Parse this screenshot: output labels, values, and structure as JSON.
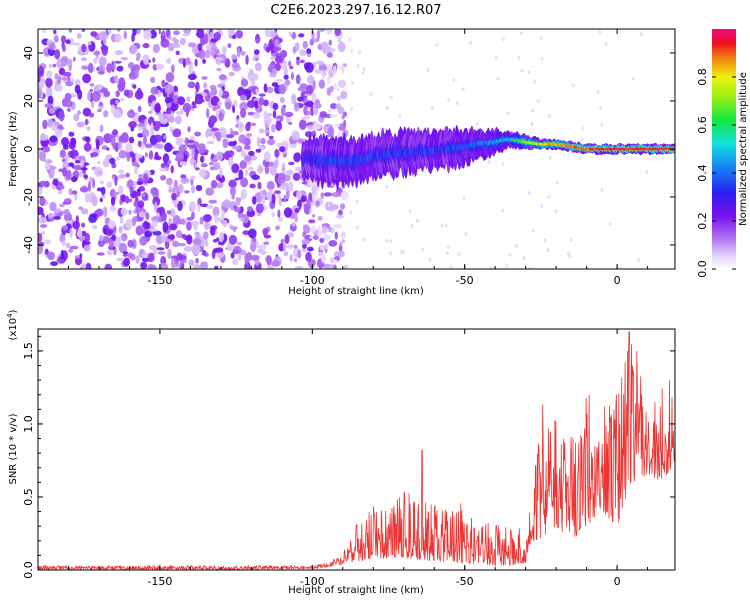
{
  "title": "C2E6.2023.297.16.12.R07",
  "chart_data": [
    {
      "type": "heatmap",
      "name": "spectrogram",
      "xlabel": "Height of straight line (km)",
      "ylabel": "Frequency (Hz)",
      "xlim": [
        -190,
        19
      ],
      "ylim": [
        -50,
        50
      ],
      "xticks": [
        -150,
        -100,
        -50,
        0
      ],
      "xtick_labels": [
        "-150",
        "-100",
        "-50",
        "0"
      ],
      "yticks": [
        -40,
        -20,
        0,
        20,
        40
      ],
      "ytick_labels": [
        "-40",
        "-20",
        "0",
        "20",
        "40"
      ],
      "noise_region": {
        "x_range": [
          -190,
          -95
        ],
        "note": "broadband scattered amplitude 0.05-0.3"
      },
      "signal_track": {
        "x": [
          -103,
          -95,
          -85,
          -75,
          -65,
          -55,
          -45,
          -40,
          -35,
          -30,
          -25,
          -20,
          -15,
          -10,
          -5,
          0,
          5,
          10,
          15,
          19
        ],
        "center_freq_hz": [
          -4,
          -5,
          -5,
          -2,
          -1,
          0,
          2,
          3,
          4,
          3,
          2,
          2,
          1,
          0,
          0,
          0,
          0,
          0,
          0,
          0
        ],
        "half_width_hz": [
          8,
          10,
          9,
          9,
          8,
          8,
          6,
          5,
          3,
          3,
          2,
          2,
          2,
          2,
          2,
          2,
          2,
          2,
          2,
          2
        ],
        "peak_amplitude": [
          0.3,
          0.35,
          0.35,
          0.35,
          0.35,
          0.35,
          0.4,
          0.45,
          0.5,
          0.7,
          0.8,
          0.85,
          0.9,
          0.9,
          0.95,
          0.95,
          0.95,
          0.95,
          0.95,
          0.95
        ]
      },
      "colorbar": {
        "label": "Normalized spectral amplitude",
        "range": [
          0,
          1
        ],
        "ticks": [
          0.0,
          0.2,
          0.4,
          0.6,
          0.8
        ],
        "tick_labels": [
          "0.0",
          "0.2",
          "0.4",
          "0.6",
          "0.8"
        ]
      }
    },
    {
      "type": "line",
      "name": "snr",
      "xlabel": "Height of straight line (km)",
      "ylabel": "SNR (10 * v/v)",
      "y_scale_label": "(x10",
      "y_scale_exp": "4",
      "y_scale_close": ")",
      "xlim": [
        -190,
        19
      ],
      "ylim": [
        0,
        1.65
      ],
      "xticks": [
        -150,
        -100,
        -50,
        0
      ],
      "xtick_labels": [
        "-150",
        "-100",
        "-50",
        "0"
      ],
      "yticks": [
        0.0,
        0.5,
        1.0,
        1.5
      ],
      "ytick_labels": [
        "0.0",
        "0.5",
        "1.0",
        "1.5"
      ],
      "color": "#ee3333",
      "series_envelope": {
        "x": [
          -190,
          -150,
          -120,
          -100,
          -95,
          -90,
          -85,
          -80,
          -75,
          -70,
          -65,
          -60,
          -55,
          -50,
          -45,
          -40,
          -35,
          -30,
          -28,
          -25,
          -20,
          -15,
          -10,
          -5,
          0,
          5,
          10,
          15,
          19
        ],
        "y_low": [
          0.005,
          0.005,
          0.005,
          0.01,
          0.02,
          0.04,
          0.06,
          0.08,
          0.08,
          0.08,
          0.07,
          0.06,
          0.05,
          0.04,
          0.04,
          0.03,
          0.03,
          0.05,
          0.2,
          0.2,
          0.3,
          0.2,
          0.3,
          0.4,
          0.3,
          0.6,
          0.65,
          0.6,
          0.75
        ],
        "y_high": [
          0.03,
          0.03,
          0.03,
          0.03,
          0.05,
          0.12,
          0.35,
          0.45,
          0.45,
          0.55,
          0.5,
          0.45,
          0.45,
          0.5,
          0.3,
          0.35,
          0.3,
          0.3,
          0.55,
          1.15,
          1.05,
          1.1,
          1.2,
          1.25,
          1.25,
          1.65,
          1.2,
          1.3,
          1.3
        ]
      },
      "notable_peaks": [
        {
          "x": -64,
          "y": 0.82
        },
        {
          "x": 4,
          "y": 1.63
        }
      ]
    }
  ]
}
